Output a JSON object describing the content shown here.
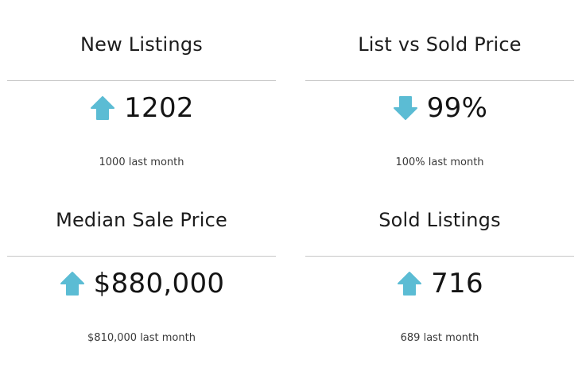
{
  "accent_color": "#5bbcd4",
  "metrics": [
    {
      "title": "New Listings",
      "trend_icon": "arrow-up-icon",
      "value": "1202",
      "last_month": "1000 last month"
    },
    {
      "title": "List vs Sold Price",
      "trend_icon": "arrow-down-icon",
      "value": "99%",
      "last_month": "100% last month"
    },
    {
      "title": "Median Sale Price",
      "trend_icon": "arrow-up-icon",
      "value": "$880,000",
      "last_month": "$810,000 last month"
    },
    {
      "title": "Sold Listings",
      "trend_icon": "arrow-up-icon",
      "value": "716",
      "last_month": "689 last month"
    }
  ]
}
